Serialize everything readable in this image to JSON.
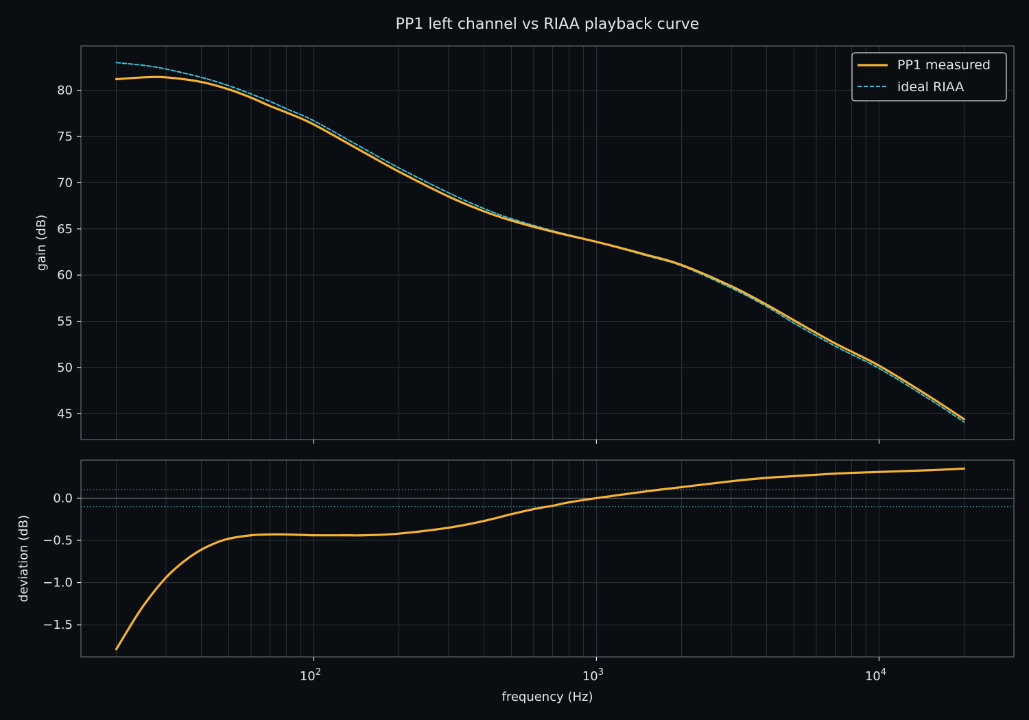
{
  "theme": {
    "background": "#0a0e12",
    "axes_edge": "#5f666c",
    "grid": "#2c3338",
    "text": "#e6e6e6",
    "measured_color": "#f5b335",
    "riaa_color": "#3fc1d8",
    "zero_line": "#8a949b",
    "tolerance_color": "#3fc1d8"
  },
  "chart_data": {
    "type": "line",
    "title": "PP1 left channel vs RIAA playback curve",
    "xlabel": "frequency (Hz)",
    "x_scale": "log",
    "xlim": [
      15,
      30000
    ],
    "x_ticks": [
      {
        "value": 100,
        "label": "10",
        "exp": "2"
      },
      {
        "value": 1000,
        "label": "10",
        "exp": "3"
      },
      {
        "value": 10000,
        "label": "10",
        "exp": "4"
      }
    ],
    "grid": true,
    "legend": {
      "placement": "top-right"
    },
    "panels": [
      {
        "ylabel": "gain (dB)",
        "ylim": [
          42.2,
          84.8
        ],
        "y_ticks": [
          {
            "value": 45,
            "label": "45"
          },
          {
            "value": 50,
            "label": "50"
          },
          {
            "value": 55,
            "label": "55"
          },
          {
            "value": 60,
            "label": "60"
          },
          {
            "value": 65,
            "label": "65"
          },
          {
            "value": 70,
            "label": "70"
          },
          {
            "value": 75,
            "label": "75"
          },
          {
            "value": 80,
            "label": "80"
          }
        ],
        "series": [
          {
            "name": "PP1 measured",
            "style": "solid",
            "x": [
              20,
              25,
              30,
              40,
              50,
              60,
              70,
              80,
              100,
              150,
              200,
              300,
              400,
              500,
              700,
              1000,
              1500,
              2000,
              3000,
              4000,
              5000,
              7000,
              10000,
              15000,
              20000
            ],
            "y": [
              81.2,
              81.4,
              81.4,
              80.9,
              80.1,
              79.2,
              78.3,
              77.6,
              76.3,
              73.3,
              71.2,
              68.5,
              66.9,
              65.9,
              64.7,
              63.6,
              62.2,
              61.1,
              58.8,
              56.8,
              55.1,
              52.6,
              50.2,
              46.9,
              44.4
            ]
          },
          {
            "name": "ideal RIAA",
            "style": "dashed",
            "x": [
              20,
              25,
              30,
              40,
              50,
              60,
              70,
              80,
              100,
              150,
              200,
              300,
              400,
              500,
              700,
              1000,
              1500,
              2000,
              3000,
              4000,
              5000,
              7000,
              10000,
              15000,
              20000
            ],
            "y": [
              83.0,
              82.7,
              82.3,
              81.4,
              80.5,
              79.6,
              78.8,
              78.0,
              76.7,
              73.7,
              71.6,
              68.9,
              67.2,
              66.1,
              64.8,
              63.6,
              62.1,
              61.0,
              58.6,
              56.6,
              54.8,
              52.3,
              49.9,
              46.6,
              44.1
            ]
          }
        ]
      },
      {
        "ylabel": "deviation (dB)",
        "ylim": [
          -1.88,
          0.45
        ],
        "y_ticks": [
          {
            "value": -1.5,
            "label": "−1.5"
          },
          {
            "value": -1.0,
            "label": "−1.0"
          },
          {
            "value": -0.5,
            "label": "−0.5"
          },
          {
            "value": 0.0,
            "label": "0.0"
          }
        ],
        "reference_lines": [
          {
            "value": 0.0,
            "style": "solid"
          },
          {
            "value": 0.1,
            "style": "dotted"
          },
          {
            "value": -0.1,
            "style": "dotted"
          }
        ],
        "series": [
          {
            "name": "deviation",
            "style": "solid",
            "x": [
              20,
              22,
              25,
              30,
              35,
              40,
              45,
              50,
              60,
              70,
              80,
              100,
              130,
              150,
              200,
              300,
              400,
              500,
              600,
              700,
              800,
              1000,
              1500,
              2000,
              3000,
              4000,
              5000,
              7000,
              10000,
              15000,
              20000
            ],
            "y": [
              -1.79,
              -1.56,
              -1.27,
              -0.94,
              -0.74,
              -0.61,
              -0.53,
              -0.48,
              -0.44,
              -0.43,
              -0.43,
              -0.44,
              -0.44,
              -0.44,
              -0.42,
              -0.35,
              -0.27,
              -0.19,
              -0.13,
              -0.09,
              -0.05,
              0.0,
              0.08,
              0.13,
              0.2,
              0.24,
              0.26,
              0.29,
              0.31,
              0.33,
              0.35
            ]
          }
        ]
      }
    ]
  }
}
